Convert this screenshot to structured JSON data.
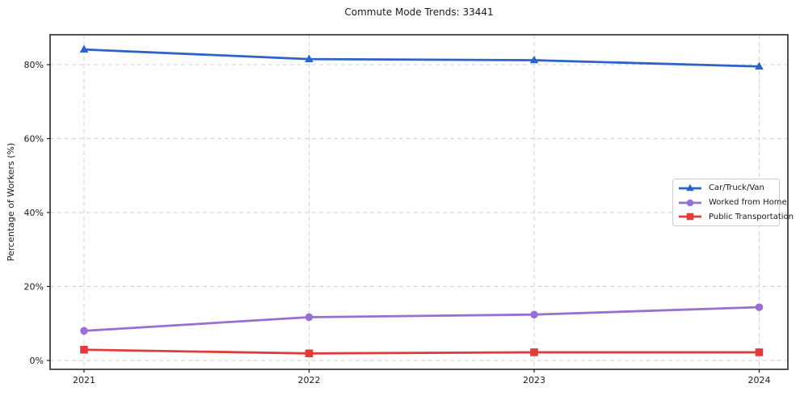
{
  "chart_data": {
    "type": "line",
    "title": "Commute Mode Trends: 33441",
    "xlabel": "",
    "ylabel": "Percentage of Workers (%)",
    "categories": [
      "2021",
      "2022",
      "2023",
      "2024"
    ],
    "series": [
      {
        "name": "Car/Truck/Van",
        "color": "#2d63c8",
        "marker": "triangle",
        "values": [
          84.1,
          81.5,
          81.2,
          79.5
        ]
      },
      {
        "name": "Worked from Home",
        "color": "#9770d2",
        "marker": "circle",
        "values": [
          8.0,
          11.7,
          12.4,
          14.4
        ]
      },
      {
        "name": "Public Transportation",
        "color": "#e03c3c",
        "marker": "square",
        "values": [
          2.9,
          1.9,
          2.2,
          2.2
        ]
      }
    ],
    "yticks": [
      {
        "label": "0%",
        "value": 0
      },
      {
        "label": "20%",
        "value": 20
      },
      {
        "label": "40%",
        "value": 40
      },
      {
        "label": "60%",
        "value": 60
      },
      {
        "label": "80%",
        "value": 80
      }
    ],
    "ylim": [
      -2.4,
      88.1
    ],
    "grid": true,
    "grid_style": "dashed",
    "legend_position": "center right",
    "colors": {
      "grid": "#d2d2d2",
      "spine": "#1a1a1a",
      "background": "#ffffff",
      "legend_border": "#cccccc"
    }
  }
}
